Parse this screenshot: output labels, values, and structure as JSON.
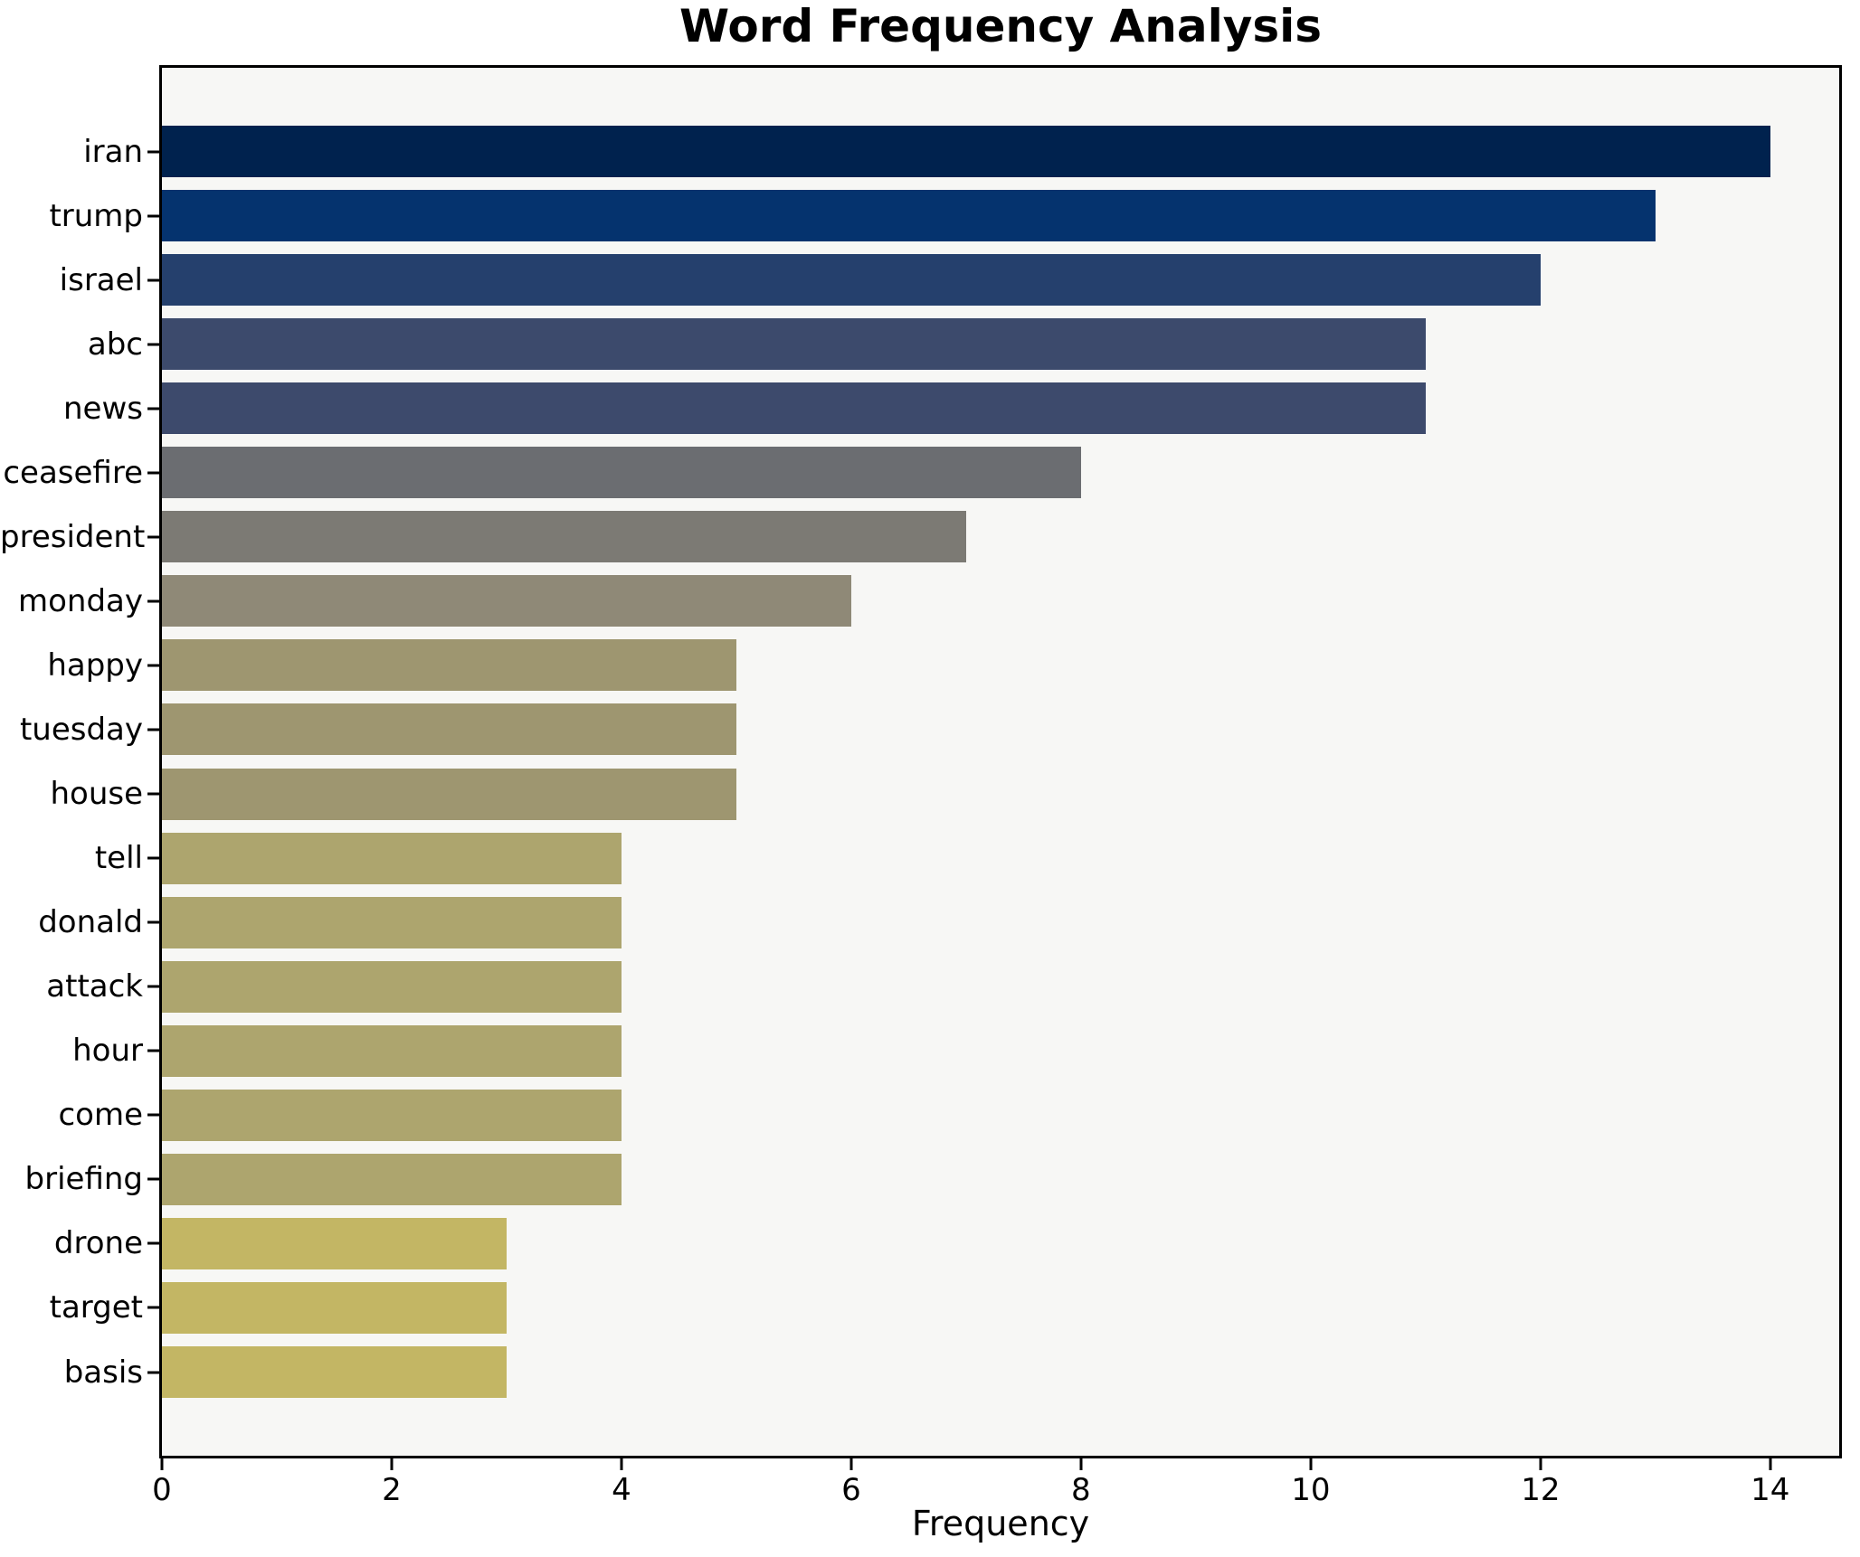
{
  "figure": {
    "title": "Word Frequency Analysis"
  },
  "chart_data": {
    "type": "bar",
    "orientation": "horizontal",
    "title": "Word Frequency Analysis",
    "xlabel": "Frequency",
    "ylabel": "",
    "categories": [
      "iran",
      "trump",
      "israel",
      "abc",
      "news",
      "ceasefire",
      "president",
      "monday",
      "happy",
      "tuesday",
      "house",
      "tell",
      "donald",
      "attack",
      "hour",
      "come",
      "briefing",
      "drone",
      "target",
      "basis"
    ],
    "values": [
      14,
      13,
      12,
      11,
      11,
      8,
      7,
      6,
      5,
      5,
      5,
      4,
      4,
      4,
      4,
      4,
      4,
      3,
      3,
      3
    ],
    "bar_colors": [
      "#00224e",
      "#05336e",
      "#25406d",
      "#3c4a6c",
      "#3d4a6c",
      "#6b6d71",
      "#7c7a74",
      "#8f8977",
      "#9e9670",
      "#9e9670",
      "#9e9670",
      "#ada56e",
      "#ada56e",
      "#ada56e",
      "#ada56e",
      "#ada56e",
      "#ada56e",
      "#c3b664",
      "#c3b664",
      "#c3b664"
    ],
    "xticks": [
      0,
      2,
      4,
      6,
      8,
      10,
      12,
      14
    ],
    "xlim": [
      0,
      14.6
    ],
    "grid": false,
    "legend": "none",
    "plot_background": "#f7f7f5",
    "figure_background": "#ffffff",
    "spine_color": "#000000",
    "text_color": "#000000"
  }
}
